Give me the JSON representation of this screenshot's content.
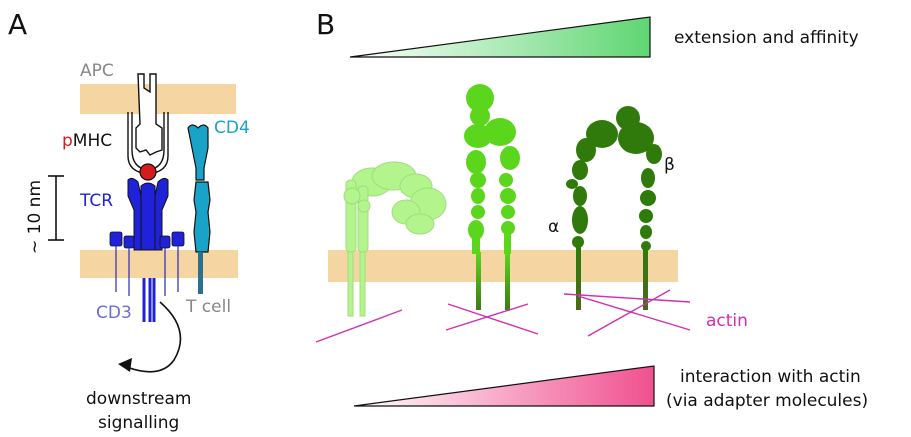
{
  "panel_a": {
    "letter": "A",
    "apc_label": "APC",
    "pmhc_prefix": "p",
    "pmhc_main": "MHC",
    "cd4_label": "CD4",
    "scale_label": "~ 10 nm",
    "tcr_label": "TCR",
    "tcell_label": "T cell",
    "cd3_label": "CD3",
    "downstream_line1": "downstream",
    "downstream_line2": "signalling"
  },
  "panel_b": {
    "letter": "B",
    "extension_label": "extension and affinity",
    "alpha_label": "α",
    "beta_label": "β",
    "actin_label": "actin",
    "interaction_line1": "interaction with actin",
    "interaction_line2": "(via adapter molecules)"
  },
  "colors": {
    "membrane": "#f5d6a3",
    "tcr_blue": "#1f22d8",
    "cd4_teal": "#1aa3c8",
    "cd3_lavender": "#6e6ad8",
    "pmhc_red": "#d41c1c",
    "apc_gray": "#888888",
    "actin_magenta": "#cf2fb0",
    "integrin_light": "#b3f48c",
    "integrin_mid": "#5cd61c",
    "integrin_dark": "#2f7a0a",
    "gradient_green": "#5fd672",
    "gradient_pink": "#f0508f"
  }
}
